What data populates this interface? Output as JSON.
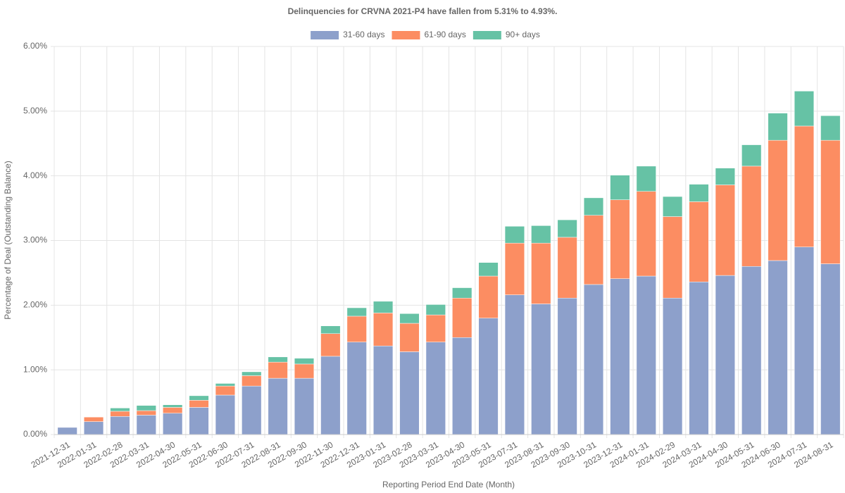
{
  "chart_data": {
    "type": "stacked_bar",
    "title": "Delinquencies for CRVNA 2021-P4 have fallen from 5.31% to 4.93%.",
    "x_label": "Reporting Period End Date (Month)",
    "y_label": "Percentage of Deal (Outstanding Balance)",
    "categories": [
      "2021-12-31",
      "2022-01-31",
      "2022-02-28",
      "2022-03-31",
      "2022-04-30",
      "2022-05-31",
      "2022-06-30",
      "2022-07-31",
      "2022-08-31",
      "2022-09-30",
      "2022-11-30",
      "2022-12-31",
      "2023-01-31",
      "2023-02-28",
      "2023-03-31",
      "2023-04-30",
      "2023-05-31",
      "2023-07-31",
      "2023-08-31",
      "2023-09-30",
      "2023-10-31",
      "2023-12-31",
      "2024-01-31",
      "2024-02-29",
      "2024-03-31",
      "2024-04-30",
      "2024-05-31",
      "2024-06-30",
      "2024-07-31",
      "2024-08-31"
    ],
    "series": [
      {
        "name": "31-60 days",
        "color": "#8da0cb",
        "values": [
          0.11,
          0.2,
          0.28,
          0.3,
          0.33,
          0.42,
          0.61,
          0.75,
          0.87,
          0.87,
          1.21,
          1.43,
          1.37,
          1.28,
          1.43,
          1.5,
          1.8,
          2.16,
          2.02,
          2.11,
          2.32,
          2.41,
          2.45,
          2.11,
          2.36,
          2.46,
          2.6,
          2.69,
          2.9,
          2.64
        ]
      },
      {
        "name": "61-90 days",
        "color": "#fc8d62",
        "values": [
          0,
          0.07,
          0.08,
          0.07,
          0.09,
          0.11,
          0.14,
          0.16,
          0.25,
          0.22,
          0.35,
          0.4,
          0.51,
          0.44,
          0.42,
          0.61,
          0.65,
          0.8,
          0.94,
          0.94,
          1.07,
          1.22,
          1.31,
          1.26,
          1.24,
          1.4,
          1.55,
          1.86,
          1.87,
          1.91
        ]
      },
      {
        "name": "90+ days",
        "color": "#66c2a5",
        "values": [
          0,
          0,
          0.05,
          0.08,
          0.04,
          0.07,
          0.04,
          0.06,
          0.08,
          0.09,
          0.12,
          0.13,
          0.18,
          0.15,
          0.16,
          0.16,
          0.21,
          0.26,
          0.27,
          0.27,
          0.27,
          0.38,
          0.39,
          0.31,
          0.27,
          0.26,
          0.33,
          0.42,
          0.54,
          0.38
        ]
      }
    ],
    "ylim": [
      0,
      6
    ],
    "yticks": [
      {
        "value": 0,
        "label": "0.00%"
      },
      {
        "value": 1,
        "label": "1.00%"
      },
      {
        "value": 2,
        "label": "2.00%"
      },
      {
        "value": 3,
        "label": "3.00%"
      },
      {
        "value": 4,
        "label": "4.00%"
      },
      {
        "value": 5,
        "label": "5.00%"
      },
      {
        "value": 6,
        "label": "6.00%"
      }
    ],
    "grid": true,
    "legend": "top"
  }
}
